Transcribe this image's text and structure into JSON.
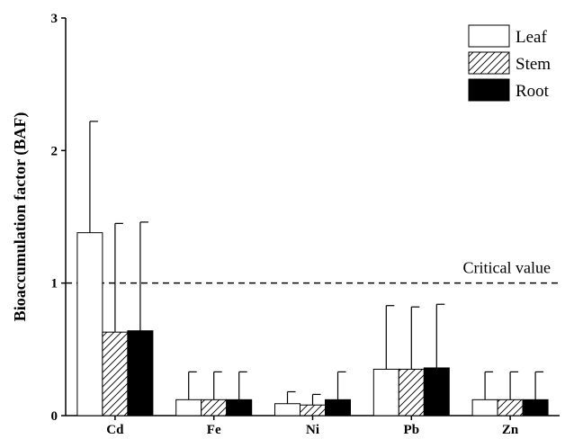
{
  "chart_data": {
    "type": "bar",
    "title": "",
    "xlabel": "",
    "ylabel": "Bioaccumulation factor (BAF)",
    "ylim": [
      0,
      3
    ],
    "yticks": [
      "0",
      "1",
      "2",
      "3"
    ],
    "grid": false,
    "legend": "top-right",
    "categories": [
      "Cd",
      "Fe",
      "Ni",
      "Pb",
      "Zn"
    ],
    "series": [
      {
        "name": "Leaf",
        "fill": "white",
        "values": [
          1.38,
          0.12,
          0.09,
          0.35,
          0.12
        ],
        "errors": [
          0.84,
          0.21,
          0.09,
          0.48,
          0.21
        ]
      },
      {
        "name": "Stem",
        "fill": "hatched",
        "values": [
          0.63,
          0.12,
          0.08,
          0.35,
          0.12
        ],
        "errors": [
          0.82,
          0.21,
          0.08,
          0.47,
          0.21
        ]
      },
      {
        "name": "Root",
        "fill": "black",
        "values": [
          0.64,
          0.12,
          0.12,
          0.36,
          0.12
        ],
        "errors": [
          0.82,
          0.21,
          0.21,
          0.48,
          0.21
        ]
      }
    ],
    "reference_line": {
      "value": 1,
      "label": "Critical value",
      "style": "dashed"
    }
  }
}
